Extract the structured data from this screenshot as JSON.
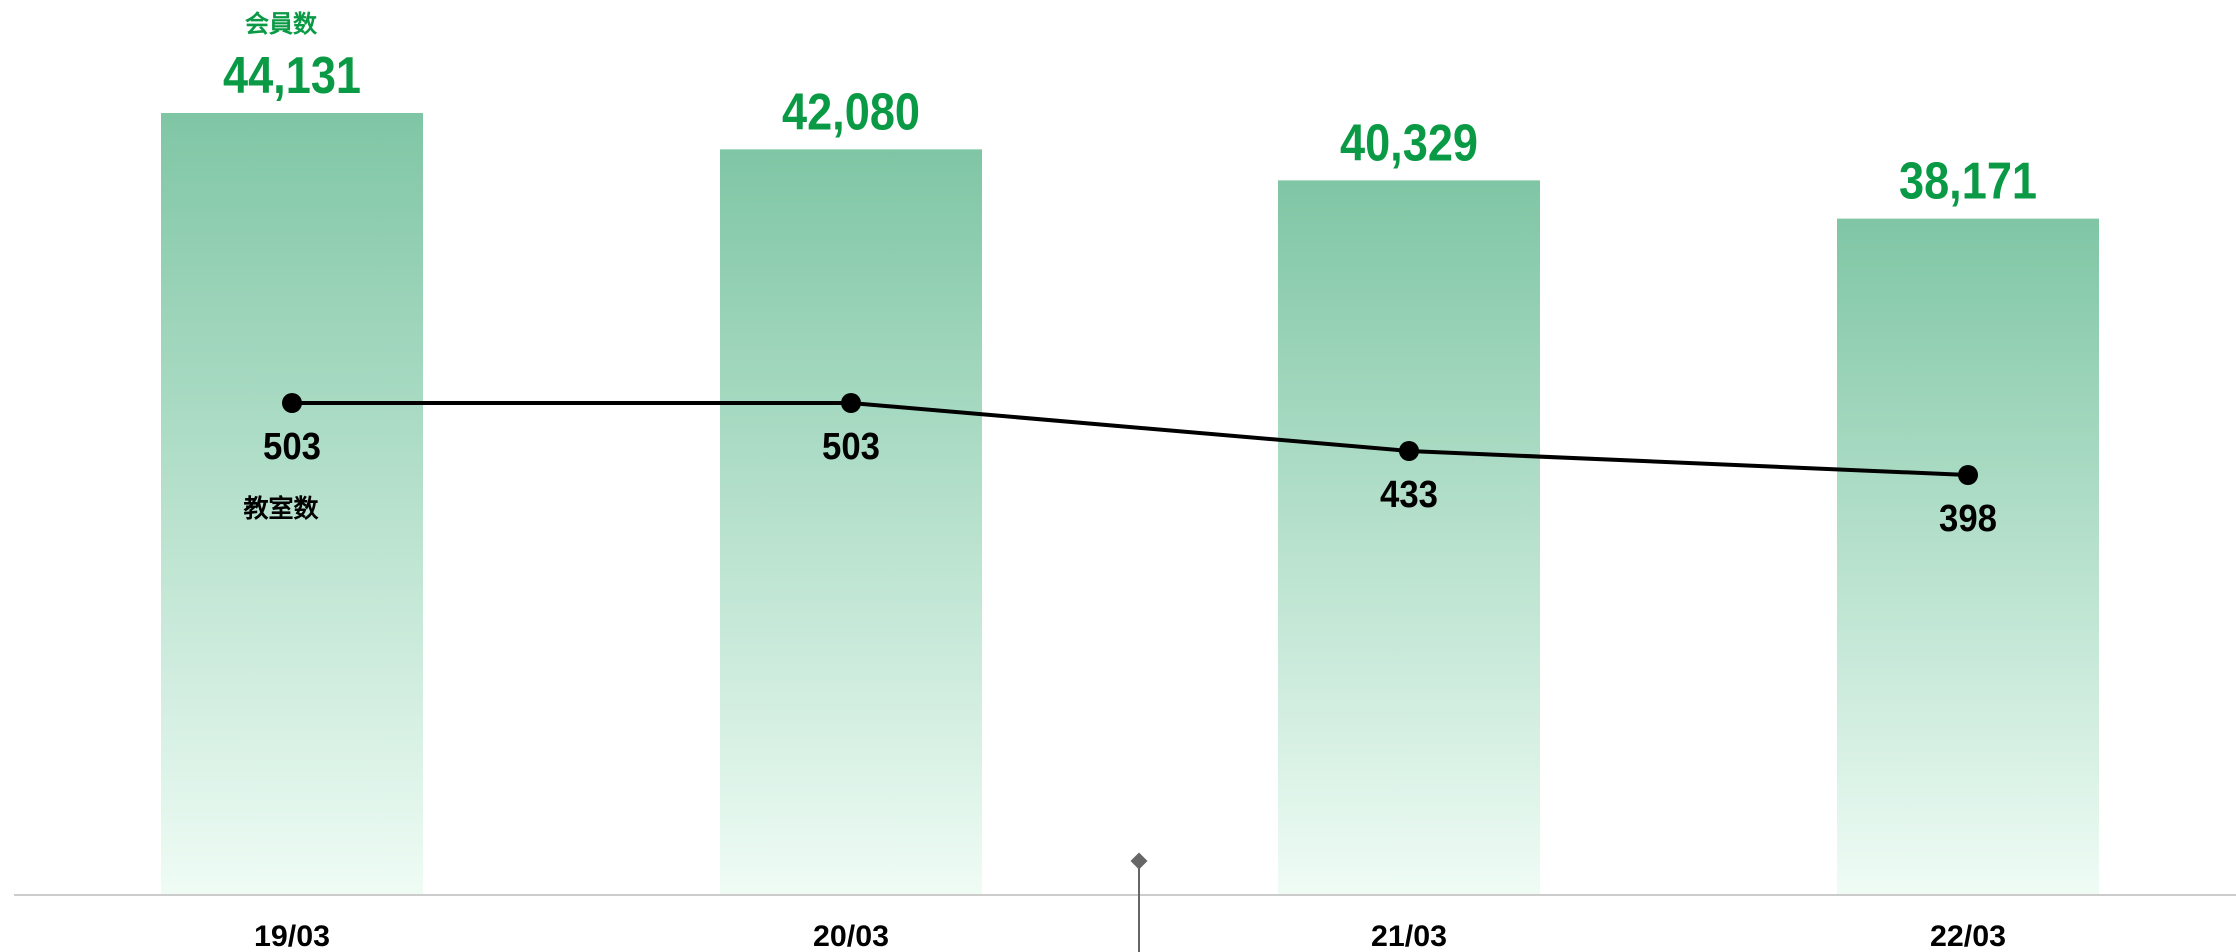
{
  "chart_data": {
    "type": "bar",
    "categories": [
      "19/03",
      "20/03",
      "21/03",
      "22/03"
    ],
    "series": [
      {
        "name": "会員数",
        "kind": "bar",
        "values": [
          44131,
          42080,
          40329,
          38171
        ],
        "labels": [
          "44,131",
          "42,080",
          "40,329",
          "38,171"
        ]
      },
      {
        "name": "教室数",
        "kind": "line",
        "values": [
          503,
          503,
          433,
          398
        ],
        "labels": [
          "503",
          "503",
          "433",
          "398"
        ]
      }
    ],
    "grid": false
  },
  "colors": {
    "bar_top": "#7fc6a5",
    "bar_bottom": "#effcf5",
    "member_text": "#0a9a45",
    "line": "#000000",
    "axis": "#cccccc",
    "marker": "#666666"
  }
}
